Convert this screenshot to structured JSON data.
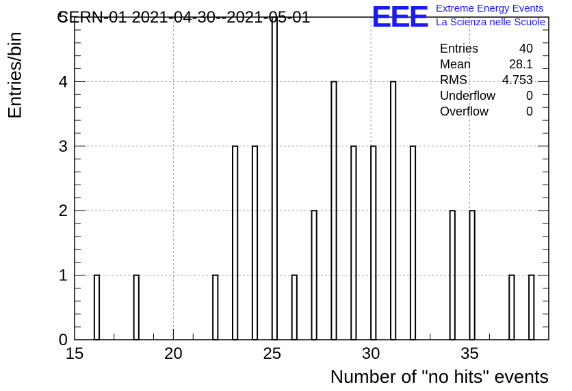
{
  "title": "CERN-01 2021-04-30--2021-05-01",
  "logo": {
    "mark": "EEE",
    "line1": "Extreme Energy Events",
    "line2": "La Scienza nelle Scuole",
    "color": "#1a1aff"
  },
  "stats": [
    {
      "label": "Entries",
      "value": "40"
    },
    {
      "label": "Mean",
      "value": "28.1"
    },
    {
      "label": "RMS",
      "value": "4.753"
    },
    {
      "label": "Underflow",
      "value": "0"
    },
    {
      "label": "Overflow",
      "value": "0"
    }
  ],
  "chart_data": {
    "type": "bar",
    "title": "CERN-01 2021-04-30--2021-05-01",
    "xlabel": "Number of \"no hits\" events",
    "ylabel": "Entries/bin",
    "xlim": [
      15,
      39
    ],
    "ylim": [
      0,
      5
    ],
    "bin_width": 0.25,
    "x_ticks": [
      15,
      20,
      25,
      30,
      35
    ],
    "y_ticks": [
      0,
      1,
      2,
      3,
      4,
      5
    ],
    "grid": true,
    "x": [
      16,
      18,
      22,
      23,
      24,
      25,
      26,
      27,
      28,
      29,
      30,
      31,
      32,
      34,
      35,
      37,
      38
    ],
    "values": [
      1,
      1,
      1,
      3,
      3,
      5,
      1,
      2,
      4,
      3,
      3,
      4,
      3,
      2,
      2,
      1,
      1
    ]
  }
}
